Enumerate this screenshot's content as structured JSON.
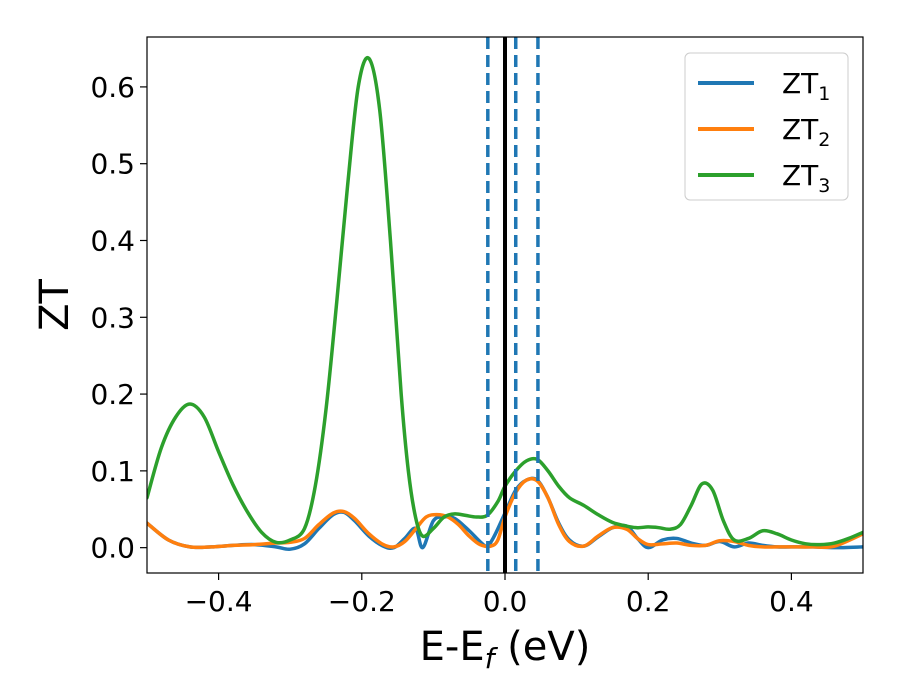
{
  "chart_data": {
    "type": "line",
    "xlabel": "E-E",
    "xlabel_sub": "f",
    "xlabel_unit": " (eV)",
    "ylabel": "ZT",
    "xlim": [
      -0.5,
      0.5
    ],
    "ylim": [
      -0.033,
      0.665
    ],
    "xticks": [
      -0.4,
      -0.2,
      0.0,
      0.2,
      0.4
    ],
    "xtick_labels": [
      "−0.4",
      "−0.2",
      "0.0",
      "0.2",
      "0.4"
    ],
    "yticks": [
      0.0,
      0.1,
      0.2,
      0.3,
      0.4,
      0.5,
      0.6
    ],
    "ytick_labels": [
      "0.0",
      "0.1",
      "0.2",
      "0.3",
      "0.4",
      "0.5",
      "0.6"
    ],
    "grid": false,
    "legend_position": "top-right",
    "vlines": [
      {
        "x": 0.0,
        "style": "solid",
        "color": "#000000"
      },
      {
        "x": -0.024,
        "style": "dashed",
        "color": "#1f77b4"
      },
      {
        "x": 0.015,
        "style": "dashed",
        "color": "#1f77b4"
      },
      {
        "x": 0.046,
        "style": "dashed",
        "color": "#1f77b4"
      }
    ],
    "series": [
      {
        "name": "ZT",
        "name_sub": "1",
        "color": "#1f77b4",
        "x": [
          -0.5,
          -0.47,
          -0.44,
          -0.41,
          -0.38,
          -0.35,
          -0.32,
          -0.3,
          -0.28,
          -0.26,
          -0.24,
          -0.225,
          -0.21,
          -0.19,
          -0.17,
          -0.155,
          -0.14,
          -0.125,
          -0.115,
          -0.1,
          -0.085,
          -0.07,
          -0.05,
          -0.035,
          -0.025,
          -0.015,
          0.0,
          0.015,
          0.03,
          0.045,
          0.06,
          0.075,
          0.09,
          0.11,
          0.13,
          0.15,
          0.17,
          0.185,
          0.2,
          0.22,
          0.24,
          0.26,
          0.28,
          0.3,
          0.32,
          0.34,
          0.36,
          0.38,
          0.4,
          0.43,
          0.46,
          0.5
        ],
        "y": [
          0.032,
          0.01,
          0.001,
          0.001,
          0.003,
          0.004,
          0.001,
          -0.002,
          0.005,
          0.025,
          0.043,
          0.046,
          0.035,
          0.015,
          0.002,
          0.0,
          0.012,
          0.025,
          0.0,
          0.035,
          0.04,
          0.038,
          0.022,
          0.008,
          0.002,
          0.015,
          0.045,
          0.075,
          0.088,
          0.088,
          0.065,
          0.032,
          0.01,
          0.002,
          0.014,
          0.026,
          0.028,
          0.012,
          0.0,
          0.01,
          0.012,
          0.006,
          0.003,
          0.008,
          0.001,
          0.006,
          0.003,
          0.001,
          0.001,
          0.001,
          0.0,
          0.001
        ]
      },
      {
        "name": "ZT",
        "name_sub": "2",
        "color": "#ff7f0e",
        "x": [
          -0.5,
          -0.47,
          -0.44,
          -0.41,
          -0.38,
          -0.35,
          -0.32,
          -0.3,
          -0.28,
          -0.26,
          -0.24,
          -0.225,
          -0.21,
          -0.19,
          -0.17,
          -0.155,
          -0.14,
          -0.125,
          -0.11,
          -0.095,
          -0.08,
          -0.065,
          -0.05,
          -0.035,
          -0.02,
          -0.01,
          0.0,
          0.015,
          0.03,
          0.045,
          0.06,
          0.075,
          0.09,
          0.11,
          0.13,
          0.15,
          0.17,
          0.185,
          0.2,
          0.22,
          0.24,
          0.26,
          0.28,
          0.3,
          0.32,
          0.34,
          0.36,
          0.38,
          0.4,
          0.43,
          0.46,
          0.5
        ],
        "y": [
          0.032,
          0.01,
          0.001,
          0.001,
          0.003,
          0.004,
          0.006,
          0.007,
          0.012,
          0.03,
          0.045,
          0.047,
          0.038,
          0.018,
          0.004,
          0.001,
          0.008,
          0.024,
          0.04,
          0.043,
          0.04,
          0.03,
          0.015,
          0.004,
          0.002,
          0.01,
          0.04,
          0.072,
          0.088,
          0.087,
          0.065,
          0.03,
          0.008,
          0.002,
          0.015,
          0.026,
          0.024,
          0.012,
          0.004,
          0.005,
          0.006,
          0.003,
          0.003,
          0.009,
          0.008,
          0.003,
          0.001,
          0.001,
          0.001,
          0.001,
          0.002,
          0.018
        ]
      },
      {
        "name": "ZT",
        "name_sub": "3",
        "color": "#2ca02c",
        "x": [
          -0.5,
          -0.48,
          -0.46,
          -0.44,
          -0.42,
          -0.4,
          -0.38,
          -0.36,
          -0.34,
          -0.32,
          -0.3,
          -0.28,
          -0.265,
          -0.25,
          -0.235,
          -0.22,
          -0.205,
          -0.19,
          -0.175,
          -0.16,
          -0.145,
          -0.135,
          -0.125,
          -0.115,
          -0.1,
          -0.085,
          -0.07,
          -0.055,
          -0.04,
          -0.025,
          -0.01,
          0.0,
          0.015,
          0.03,
          0.045,
          0.06,
          0.075,
          0.09,
          0.11,
          0.13,
          0.15,
          0.17,
          0.185,
          0.2,
          0.215,
          0.23,
          0.245,
          0.26,
          0.275,
          0.29,
          0.305,
          0.32,
          0.34,
          0.36,
          0.38,
          0.4,
          0.42,
          0.44,
          0.46,
          0.48,
          0.5
        ],
        "y": [
          0.065,
          0.13,
          0.17,
          0.187,
          0.17,
          0.125,
          0.082,
          0.047,
          0.02,
          0.007,
          0.01,
          0.025,
          0.08,
          0.18,
          0.32,
          0.47,
          0.6,
          0.637,
          0.57,
          0.4,
          0.2,
          0.1,
          0.04,
          0.015,
          0.025,
          0.04,
          0.044,
          0.042,
          0.04,
          0.042,
          0.06,
          0.08,
          0.1,
          0.113,
          0.115,
          0.1,
          0.08,
          0.065,
          0.055,
          0.043,
          0.033,
          0.028,
          0.026,
          0.027,
          0.026,
          0.024,
          0.03,
          0.055,
          0.083,
          0.075,
          0.035,
          0.01,
          0.012,
          0.022,
          0.018,
          0.01,
          0.005,
          0.004,
          0.006,
          0.012,
          0.02
        ]
      }
    ]
  }
}
